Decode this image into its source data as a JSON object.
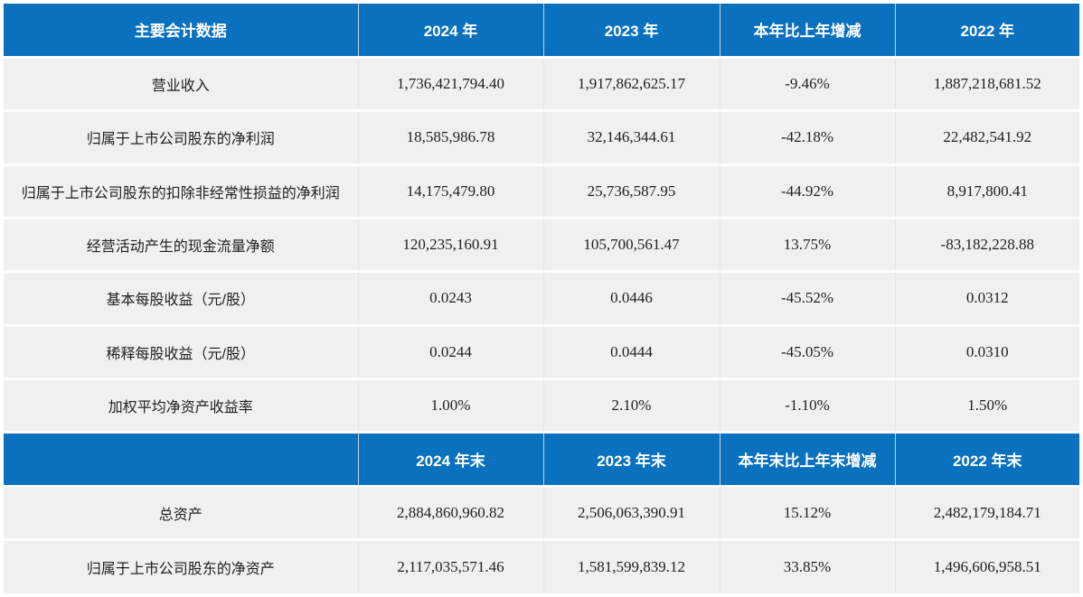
{
  "accent_color": "#0a71bf",
  "body_row_color": "#f0f0f1",
  "table": {
    "name": "主要会计数据",
    "sections": [
      {
        "headers": [
          "主要会计数据",
          "2024 年",
          "2023 年",
          "本年比上年增减",
          "2022 年"
        ],
        "rows": [
          [
            "营业收入",
            "1,736,421,794.40",
            "1,917,862,625.17",
            "-9.46%",
            "1,887,218,681.52"
          ],
          [
            "归属于上市公司股东的净利润",
            "18,585,986.78",
            "32,146,344.61",
            "-42.18%",
            "22,482,541.92"
          ],
          [
            "归属于上市公司股东的扣除非经常性损益的净利润",
            "14,175,479.80",
            "25,736,587.95",
            "-44.92%",
            "8,917,800.41"
          ],
          [
            "经营活动产生的现金流量净额",
            "120,235,160.91",
            "105,700,561.47",
            "13.75%",
            "-83,182,228.88"
          ],
          [
            "基本每股收益（元/股）",
            "0.0243",
            "0.0446",
            "-45.52%",
            "0.0312"
          ],
          [
            "稀释每股收益（元/股）",
            "0.0244",
            "0.0444",
            "-45.05%",
            "0.0310"
          ],
          [
            "加权平均净资产收益率",
            "1.00%",
            "2.10%",
            "-1.10%",
            "1.50%"
          ]
        ]
      },
      {
        "headers": [
          "",
          "2024 年末",
          "2023 年末",
          "本年末比上年末增减",
          "2022 年末"
        ],
        "rows": [
          [
            "总资产",
            "2,884,860,960.82",
            "2,506,063,390.91",
            "15.12%",
            "2,482,179,184.71"
          ],
          [
            "归属于上市公司股东的净资产",
            "2,117,035,571.46",
            "1,581,599,839.12",
            "33.85%",
            "1,496,606,958.51"
          ]
        ]
      }
    ]
  }
}
